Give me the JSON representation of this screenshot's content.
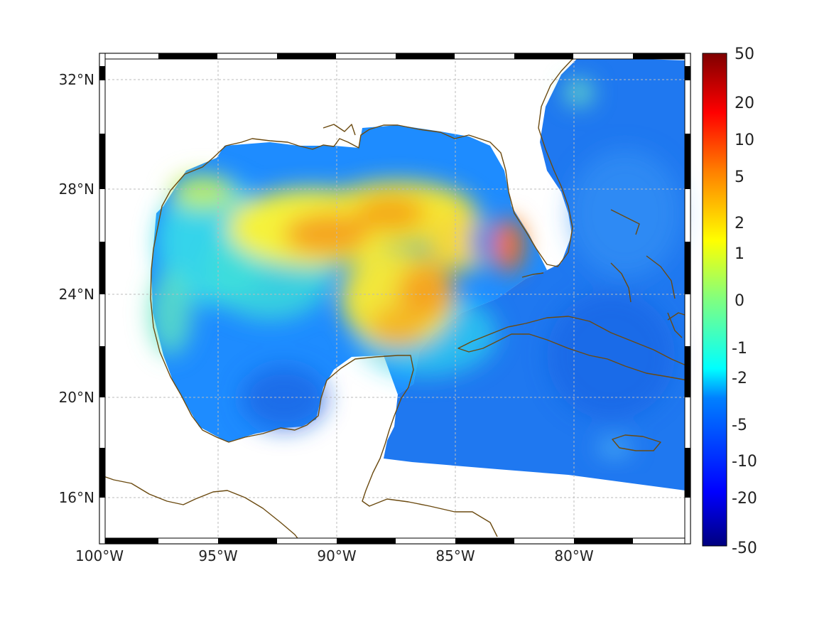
{
  "map": {
    "lon_ticks": [
      "100°W",
      "95°W",
      "90°W",
      "85°W",
      "80°W"
    ],
    "lat_ticks": [
      "32°N",
      "28°N",
      "24°N",
      "20°N",
      "16°N"
    ],
    "lon_range": [
      -100,
      -75
    ],
    "lat_range": [
      14.5,
      33
    ],
    "colors": {
      "coastline": "#6b4a10",
      "frame": "#000000",
      "gridline": "#bbbbbb"
    }
  },
  "colorbar": {
    "labels": [
      "50",
      "20",
      "10",
      "5",
      "2",
      "1",
      "0",
      "-1",
      "-2",
      "-5",
      "-10",
      "-20",
      "-50"
    ],
    "colormap": "jet",
    "stops": [
      "#00007f",
      "#0000ff",
      "#0080ff",
      "#00ffff",
      "#80ff80",
      "#ffff00",
      "#ff8000",
      "#ff0000",
      "#7f0000"
    ]
  }
}
